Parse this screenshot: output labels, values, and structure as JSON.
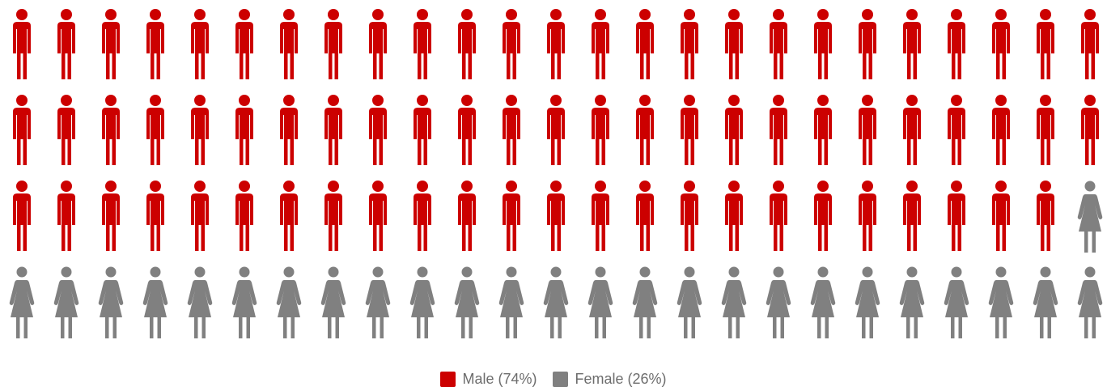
{
  "chart_data": {
    "type": "pictogram",
    "unit_count": 100,
    "rows": 4,
    "columns": 25,
    "series": [
      {
        "name": "Male",
        "label": "Male (74%)",
        "value": 74,
        "color": "#cc0000",
        "icon": "male-person-icon"
      },
      {
        "name": "Female",
        "label": "Female (26%)",
        "value": 26,
        "color": "#808080",
        "icon": "female-person-icon"
      }
    ],
    "legend_position": "bottom-center"
  }
}
